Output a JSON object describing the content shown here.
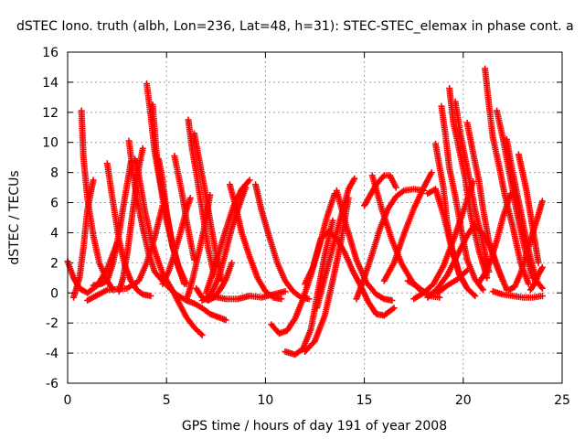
{
  "chart_data": {
    "type": "scatter",
    "title": "dSTEC Iono. truth (albh, Lon=236, Lat=48, h=31): STEC-STEC_elemax in phase cont. a",
    "xlabel": "GPS time / hours of day 191 of year 2008",
    "ylabel": "dSTEC  / TECUs",
    "xlim": [
      0,
      25
    ],
    "ylim": [
      -6,
      16
    ],
    "xticks": [
      "0",
      "5",
      "10",
      "15",
      "20",
      "25"
    ],
    "yticks": [
      "-6",
      "-4",
      "-2",
      "0",
      "2",
      "4",
      "6",
      "8",
      "10",
      "12",
      "14",
      "16"
    ],
    "grid": true,
    "marker": "+",
    "color": "#ff0000",
    "tracks": [
      {
        "x": [
          0.0,
          0.3,
          0.6,
          1.0,
          1.5,
          2.0,
          2.5
        ],
        "y": [
          2.1,
          1.0,
          0.3,
          0.0,
          0.5,
          1.6,
          3.3
        ]
      },
      {
        "x": [
          0.3,
          0.6,
          0.8,
          1.0,
          1.3
        ],
        "y": [
          -0.3,
          1.0,
          3.0,
          5.5,
          7.5
        ]
      },
      {
        "x": [
          0.7,
          0.8,
          1.0,
          1.3,
          1.6,
          2.0,
          2.3
        ],
        "y": [
          12.1,
          9.0,
          6.3,
          3.8,
          2.0,
          0.8,
          0.2
        ]
      },
      {
        "x": [
          1.3,
          1.7,
          2.0,
          2.3,
          2.6,
          2.9,
          3.2
        ],
        "y": [
          0.5,
          0.6,
          0.8,
          2.0,
          4.0,
          6.4,
          8.7
        ]
      },
      {
        "x": [
          2.0,
          2.3,
          2.6,
          2.9,
          3.2,
          3.5,
          3.8,
          4.2
        ],
        "y": [
          8.6,
          6.0,
          3.5,
          1.8,
          0.8,
          0.2,
          -0.1,
          -0.2
        ]
      },
      {
        "x": [
          2.6,
          2.8,
          3.0,
          3.2,
          3.4,
          3.6,
          3.8
        ],
        "y": [
          0.1,
          1.0,
          2.5,
          4.5,
          6.5,
          8.3,
          9.6
        ]
      },
      {
        "x": [
          3.1,
          3.3,
          3.5,
          3.8,
          4.1,
          4.4,
          4.8
        ],
        "y": [
          10.1,
          8.0,
          6.3,
          4.3,
          2.6,
          1.4,
          0.8
        ]
      },
      {
        "x": [
          1.0,
          2.0,
          3.0,
          3.6,
          4.0,
          4.4,
          4.8
        ],
        "y": [
          -0.5,
          0.2,
          0.3,
          0.8,
          2.0,
          3.7,
          5.8
        ]
      },
      {
        "x": [
          3.4,
          3.6,
          3.9,
          4.2,
          4.5,
          4.8,
          5.2,
          5.6,
          6.0,
          6.4,
          6.8
        ],
        "y": [
          8.9,
          7.8,
          5.5,
          3.7,
          2.4,
          1.3,
          0.4,
          -0.6,
          -1.6,
          -2.3,
          -2.8
        ]
      },
      {
        "x": [
          4.0,
          4.2,
          4.4,
          4.7,
          5.0,
          5.3,
          5.6,
          6.0
        ],
        "y": [
          13.9,
          11.8,
          9.4,
          7.1,
          4.8,
          3.2,
          1.8,
          0.6
        ]
      },
      {
        "x": [
          4.3,
          4.5,
          4.7,
          5.0,
          5.3,
          5.6,
          5.9
        ],
        "y": [
          12.5,
          9.2,
          7.4,
          5.2,
          3.2,
          1.7,
          0.6
        ]
      },
      {
        "x": [
          4.6,
          4.8,
          5.0,
          5.3,
          5.6,
          5.9
        ],
        "y": [
          8.9,
          7.5,
          5.4,
          3.1,
          1.8,
          0.7
        ]
      },
      {
        "x": [
          5.4,
          5.6,
          5.8,
          6.0,
          6.2,
          6.4
        ],
        "y": [
          9.1,
          7.8,
          6.5,
          4.9,
          3.5,
          2.2
        ]
      },
      {
        "x": [
          4.8,
          5.1,
          5.4,
          5.7,
          6.0,
          6.2
        ],
        "y": [
          0.6,
          1.4,
          2.6,
          4.0,
          5.5,
          6.3
        ]
      },
      {
        "x": [
          5.0,
          5.5,
          6.0,
          6.4,
          6.8,
          7.2,
          7.6,
          8.0
        ],
        "y": [
          0.5,
          -0.1,
          -0.5,
          -0.7,
          -1.0,
          -1.4,
          -1.6,
          -1.8
        ]
      },
      {
        "x": [
          6.1,
          6.3,
          6.5,
          6.8,
          7.1,
          7.4
        ],
        "y": [
          11.5,
          9.5,
          8.0,
          5.5,
          3.0,
          1.2
        ]
      },
      {
        "x": [
          6.4,
          6.6,
          6.8,
          7.0,
          7.2,
          7.5,
          7.8
        ],
        "y": [
          10.6,
          9.2,
          7.8,
          6.4,
          4.8,
          2.6,
          0.8
        ]
      },
      {
        "x": [
          6.0,
          6.3,
          6.6,
          6.9,
          7.2
        ],
        "y": [
          -0.5,
          0.8,
          2.5,
          4.3,
          6.5
        ]
      },
      {
        "x": [
          6.5,
          6.8,
          7.1,
          7.4,
          7.7,
          8.0,
          8.3
        ],
        "y": [
          0.3,
          -0.3,
          -0.5,
          -0.3,
          0.2,
          0.9,
          2.0
        ]
      },
      {
        "x": [
          6.8,
          7.1,
          7.4,
          7.7,
          8.0,
          8.3,
          8.6,
          9.0
        ],
        "y": [
          -0.5,
          -0.3,
          0.3,
          1.3,
          2.8,
          4.3,
          5.5,
          7.0
        ]
      },
      {
        "x": [
          7.0,
          7.3,
          7.6,
          8.0,
          8.4,
          8.8,
          9.2
        ],
        "y": [
          0.0,
          1.2,
          2.5,
          4.2,
          5.8,
          6.9,
          7.5
        ]
      },
      {
        "x": [
          8.2,
          8.5,
          8.8,
          9.2,
          9.6,
          10.0,
          10.4,
          10.8
        ],
        "y": [
          7.2,
          5.7,
          4.0,
          2.4,
          1.0,
          0.1,
          -0.3,
          -0.4
        ]
      },
      {
        "x": [
          9.5,
          9.8,
          10.2,
          10.6,
          11.0,
          11.4,
          11.8,
          12.2
        ],
        "y": [
          7.2,
          5.5,
          3.7,
          2.0,
          0.8,
          0.1,
          -0.3,
          -0.4
        ]
      },
      {
        "x": [
          7.2,
          8.0,
          8.6,
          9.2,
          9.8,
          10.4,
          11.0
        ],
        "y": [
          -0.2,
          -0.4,
          -0.4,
          -0.2,
          -0.3,
          -0.1,
          0.1
        ]
      },
      {
        "x": [
          10.3,
          10.7,
          11.1,
          11.5,
          11.9,
          12.3,
          12.7,
          13.1,
          13.5
        ],
        "y": [
          -2.1,
          -2.7,
          -2.5,
          -1.7,
          -0.4,
          1.2,
          3.0,
          5.0,
          6.6
        ]
      },
      {
        "x": [
          11.0,
          11.5,
          11.9,
          12.3,
          12.6,
          13.0,
          13.4
        ],
        "y": [
          -3.9,
          -4.1,
          -3.7,
          -2.4,
          -0.3,
          2.5,
          4.8
        ]
      },
      {
        "x": [
          12.0,
          12.5,
          13.0,
          13.4,
          13.8,
          14.2
        ],
        "y": [
          -3.9,
          -3.2,
          -1.5,
          0.8,
          3.3,
          6.3
        ]
      },
      {
        "x": [
          12.6,
          13.0,
          13.4,
          13.8,
          14.2,
          14.5
        ],
        "y": [
          -1.0,
          1.0,
          3.0,
          5.0,
          6.9,
          7.6
        ]
      },
      {
        "x": [
          12.0,
          12.4,
          12.8,
          13.2,
          13.6,
          14.0,
          14.4,
          14.8,
          15.2,
          15.6,
          16.0,
          16.5
        ],
        "y": [
          0.6,
          1.7,
          3.6,
          4.1,
          3.6,
          2.7,
          1.5,
          0.5,
          -0.6,
          -1.4,
          -1.5,
          -1.0
        ]
      },
      {
        "x": [
          13.6,
          14.1,
          14.6,
          15.1,
          15.6,
          16.0,
          16.4
        ],
        "y": [
          6.8,
          4.4,
          2.2,
          0.7,
          -0.1,
          -0.4,
          -0.5
        ]
      },
      {
        "x": [
          14.6,
          15.0,
          15.4,
          15.8,
          16.2,
          16.6,
          17.0,
          17.5,
          18.0
        ],
        "y": [
          -0.4,
          1.0,
          2.6,
          4.3,
          5.6,
          6.4,
          6.8,
          6.9,
          6.8
        ]
      },
      {
        "x": [
          15.0,
          15.3,
          15.6,
          16.0,
          16.3,
          16.6
        ],
        "y": [
          5.8,
          6.5,
          7.2,
          7.8,
          7.8,
          7.0
        ]
      },
      {
        "x": [
          15.4,
          15.9,
          16.4,
          16.9,
          17.4,
          17.8,
          18.3,
          18.8
        ],
        "y": [
          7.8,
          5.5,
          3.5,
          1.9,
          0.8,
          0.2,
          -0.2,
          -0.3
        ]
      },
      {
        "x": [
          16.0,
          16.5,
          17.0,
          17.5,
          18.0,
          18.4
        ],
        "y": [
          0.8,
          2.0,
          3.9,
          5.6,
          7.0,
          8.0
        ]
      },
      {
        "x": [
          17.2,
          17.7,
          18.2,
          18.7,
          19.2,
          19.7,
          20.2
        ],
        "y": [
          0.8,
          0.4,
          -0.1,
          0.0,
          0.5,
          0.9,
          1.5
        ]
      },
      {
        "x": [
          17.5,
          18.0,
          18.5,
          19.0,
          19.5,
          20.0,
          20.5
        ],
        "y": [
          -0.4,
          0.0,
          0.6,
          1.8,
          3.5,
          5.4,
          7.4
        ]
      },
      {
        "x": [
          18.2,
          18.6,
          19.0,
          19.4,
          19.8,
          20.2,
          20.6
        ],
        "y": [
          6.6,
          6.9,
          5.2,
          3.0,
          1.2,
          0.3,
          -0.2
        ]
      },
      {
        "x": [
          18.6,
          18.8,
          19.0,
          19.2,
          19.5,
          19.8,
          20.2
        ],
        "y": [
          9.9,
          8.4,
          7.0,
          4.5,
          2.6,
          1.3,
          0.3
        ]
      },
      {
        "x": [
          18.9,
          19.1,
          19.3,
          19.6,
          19.9,
          20.2,
          20.6,
          21.0
        ],
        "y": [
          12.4,
          10.5,
          8.3,
          6.4,
          4.2,
          2.2,
          0.9,
          0.2
        ]
      },
      {
        "x": [
          19.3,
          19.5,
          19.8,
          20.1,
          20.4,
          20.8,
          21.2
        ],
        "y": [
          13.6,
          11.3,
          9.5,
          7.6,
          5.0,
          2.8,
          1.0
        ]
      },
      {
        "x": [
          19.6,
          19.8,
          20.0,
          20.3,
          20.6,
          21.0,
          21.3
        ],
        "y": [
          12.7,
          11.0,
          9.6,
          7.6,
          5.5,
          3.3,
          1.4
        ]
      },
      {
        "x": [
          20.2,
          20.5,
          20.8,
          21.0,
          21.3,
          21.6,
          22.0
        ],
        "y": [
          11.3,
          9.3,
          7.4,
          5.6,
          3.4,
          2.1,
          0.8
        ]
      },
      {
        "x": [
          21.1,
          21.3,
          21.5,
          21.8,
          22.1,
          22.5,
          22.9,
          23.3
        ],
        "y": [
          14.9,
          12.5,
          10.3,
          8.5,
          6.5,
          4.4,
          2.0,
          0.6
        ]
      },
      {
        "x": [
          21.7,
          22.0,
          22.3,
          22.7,
          23.1,
          23.5
        ],
        "y": [
          12.1,
          10.3,
          8.2,
          5.4,
          3.0,
          1.0
        ]
      },
      {
        "x": [
          22.2,
          22.5,
          22.8,
          23.1,
          23.4,
          23.7,
          24.0
        ],
        "y": [
          10.2,
          8.0,
          6.1,
          4.1,
          2.3,
          0.8,
          0.3
        ]
      },
      {
        "x": [
          20.8,
          21.1,
          21.4,
          21.7,
          22.0,
          22.4
        ],
        "y": [
          0.7,
          1.3,
          2.2,
          3.5,
          5.0,
          6.6
        ]
      },
      {
        "x": [
          22.3,
          22.6,
          22.9,
          23.2,
          23.5,
          23.8,
          24.0
        ],
        "y": [
          0.2,
          0.4,
          1.3,
          2.6,
          3.9,
          5.2,
          6.1
        ]
      },
      {
        "x": [
          22.8,
          23.0,
          23.2,
          23.4,
          23.6,
          23.8
        ],
        "y": [
          9.2,
          8.0,
          6.8,
          5.2,
          3.6,
          2.0
        ]
      },
      {
        "x": [
          21.5,
          22.0,
          22.5,
          23.0,
          23.5,
          24.0
        ],
        "y": [
          0.1,
          -0.1,
          -0.2,
          -0.3,
          -0.3,
          -0.2
        ]
      },
      {
        "x": [
          23.4,
          23.6,
          23.8,
          24.0
        ],
        "y": [
          0.2,
          0.6,
          1.2,
          1.7
        ]
      },
      {
        "x": [
          18.2,
          18.7,
          19.2,
          19.7,
          20.2,
          20.6
        ],
        "y": [
          -0.3,
          0.3,
          1.2,
          2.5,
          3.8,
          4.6
        ]
      },
      {
        "x": [
          20.6,
          21.0,
          21.4,
          21.8,
          22.2
        ],
        "y": [
          4.5,
          3.9,
          3.0,
          1.5,
          0.2
        ]
      }
    ]
  }
}
